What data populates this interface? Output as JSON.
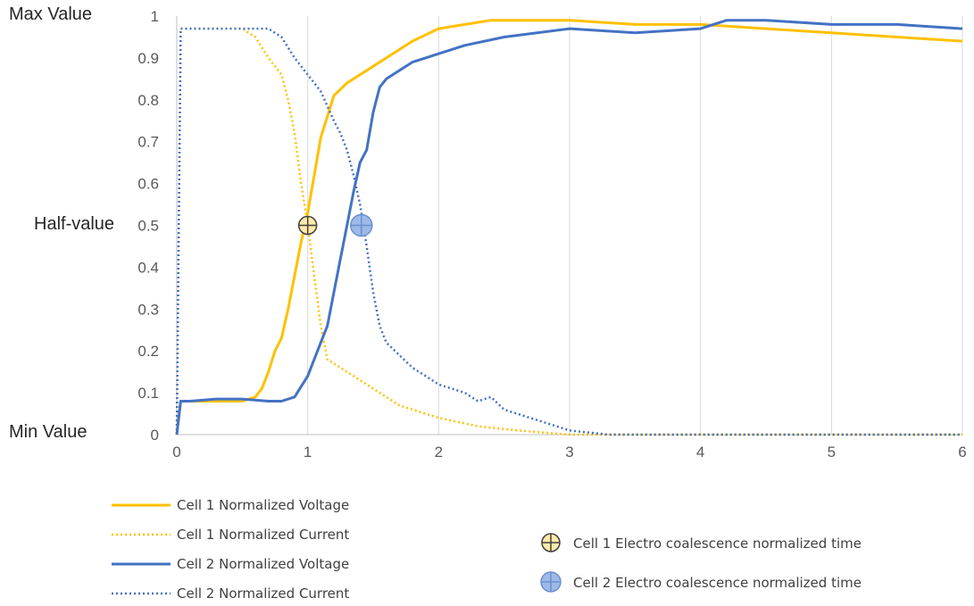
{
  "chart_data": {
    "type": "line",
    "xlim": [
      0,
      6
    ],
    "ylim": [
      0,
      1
    ],
    "x_ticks": [
      "0",
      "1",
      "2",
      "3",
      "4",
      "5",
      "6"
    ],
    "y_ticks": [
      "0",
      "0.1",
      "0.2",
      "0.3",
      "0.4",
      "0.5",
      "0.6",
      "0.7",
      "0.8",
      "0.9",
      "1"
    ],
    "y_side_labels": {
      "max": "Max Value",
      "half": "Half-value",
      "min": "Min Value"
    },
    "grid": {
      "vertical": true,
      "horizontal": false
    },
    "legend_position": "bottom",
    "series": [
      {
        "name": "Cell 1 Normalized Voltage",
        "color": "#FFC000",
        "style": "solid",
        "x": [
          0,
          0.03,
          0.1,
          0.3,
          0.5,
          0.6,
          0.65,
          0.7,
          0.75,
          0.8,
          0.85,
          0.9,
          0.95,
          1.0,
          1.05,
          1.1,
          1.15,
          1.2,
          1.3,
          1.4,
          1.5,
          1.6,
          1.8,
          2.0,
          2.2,
          2.4,
          2.6,
          2.8,
          3.0,
          3.5,
          4.0,
          4.5,
          5.0,
          5.5,
          6.0
        ],
        "y": [
          0,
          0.08,
          0.08,
          0.08,
          0.08,
          0.09,
          0.11,
          0.15,
          0.2,
          0.23,
          0.3,
          0.38,
          0.46,
          0.53,
          0.62,
          0.71,
          0.76,
          0.81,
          0.84,
          0.86,
          0.88,
          0.9,
          0.94,
          0.97,
          0.98,
          0.99,
          0.99,
          0.99,
          0.99,
          0.98,
          0.98,
          0.97,
          0.96,
          0.95,
          0.94
        ]
      },
      {
        "name": "Cell 1 Normalized Current",
        "color": "#FFC000",
        "style": "dotted",
        "x": [
          0,
          0.03,
          0.1,
          0.3,
          0.5,
          0.6,
          0.7,
          0.8,
          0.85,
          0.9,
          0.95,
          1.0,
          1.05,
          1.1,
          1.15,
          1.2,
          1.3,
          1.4,
          1.5,
          1.7,
          2.0,
          2.3,
          2.6,
          3.0,
          3.5,
          4.0,
          5.0,
          6.0
        ],
        "y": [
          0,
          0.97,
          0.97,
          0.97,
          0.97,
          0.95,
          0.9,
          0.86,
          0.8,
          0.72,
          0.6,
          0.5,
          0.38,
          0.26,
          0.18,
          0.17,
          0.15,
          0.13,
          0.11,
          0.07,
          0.04,
          0.02,
          0.01,
          0.0,
          0.0,
          0.0,
          0.0,
          0.0
        ]
      },
      {
        "name": "Cell 2 Normalized Voltage",
        "color": "#4472C4",
        "style": "solid",
        "x": [
          0,
          0.03,
          0.1,
          0.3,
          0.5,
          0.7,
          0.8,
          0.9,
          1.0,
          1.05,
          1.1,
          1.15,
          1.2,
          1.25,
          1.3,
          1.35,
          1.4,
          1.45,
          1.5,
          1.55,
          1.6,
          1.7,
          1.8,
          1.9,
          2.0,
          2.2,
          2.5,
          3.0,
          3.5,
          4.0,
          4.2,
          4.5,
          5.0,
          5.5,
          6.0
        ],
        "y": [
          0,
          0.08,
          0.08,
          0.085,
          0.085,
          0.08,
          0.08,
          0.09,
          0.14,
          0.18,
          0.22,
          0.26,
          0.34,
          0.42,
          0.5,
          0.58,
          0.65,
          0.68,
          0.77,
          0.83,
          0.85,
          0.87,
          0.89,
          0.9,
          0.91,
          0.93,
          0.95,
          0.97,
          0.96,
          0.97,
          0.99,
          0.99,
          0.98,
          0.98,
          0.97
        ]
      },
      {
        "name": "Cell 2 Normalized Current",
        "color": "#4472C4",
        "style": "dotted",
        "x": [
          0,
          0.03,
          0.1,
          0.3,
          0.5,
          0.7,
          0.8,
          0.9,
          1.0,
          1.1,
          1.2,
          1.25,
          1.3,
          1.35,
          1.4,
          1.45,
          1.5,
          1.55,
          1.6,
          1.7,
          1.8,
          1.9,
          2.0,
          2.1,
          2.2,
          2.3,
          2.4,
          2.5,
          2.6,
          2.8,
          3.0,
          3.3,
          3.6,
          4.0,
          5.0,
          6.0
        ],
        "y": [
          0,
          0.97,
          0.97,
          0.97,
          0.97,
          0.97,
          0.95,
          0.9,
          0.86,
          0.82,
          0.75,
          0.72,
          0.68,
          0.62,
          0.55,
          0.45,
          0.34,
          0.26,
          0.22,
          0.19,
          0.16,
          0.14,
          0.12,
          0.11,
          0.1,
          0.08,
          0.09,
          0.06,
          0.05,
          0.03,
          0.01,
          0.0,
          0.0,
          0.0,
          0.0,
          0.0
        ]
      }
    ],
    "markers": [
      {
        "name": "Cell 1 Electro coalescence normalized time",
        "x": 1.0,
        "y": 0.5,
        "fill": "#FFE9A8"
      },
      {
        "name": "Cell 2 Electro coalescence normalized time",
        "x": 1.41,
        "y": 0.5,
        "fill": "#9DB9E8"
      }
    ]
  }
}
